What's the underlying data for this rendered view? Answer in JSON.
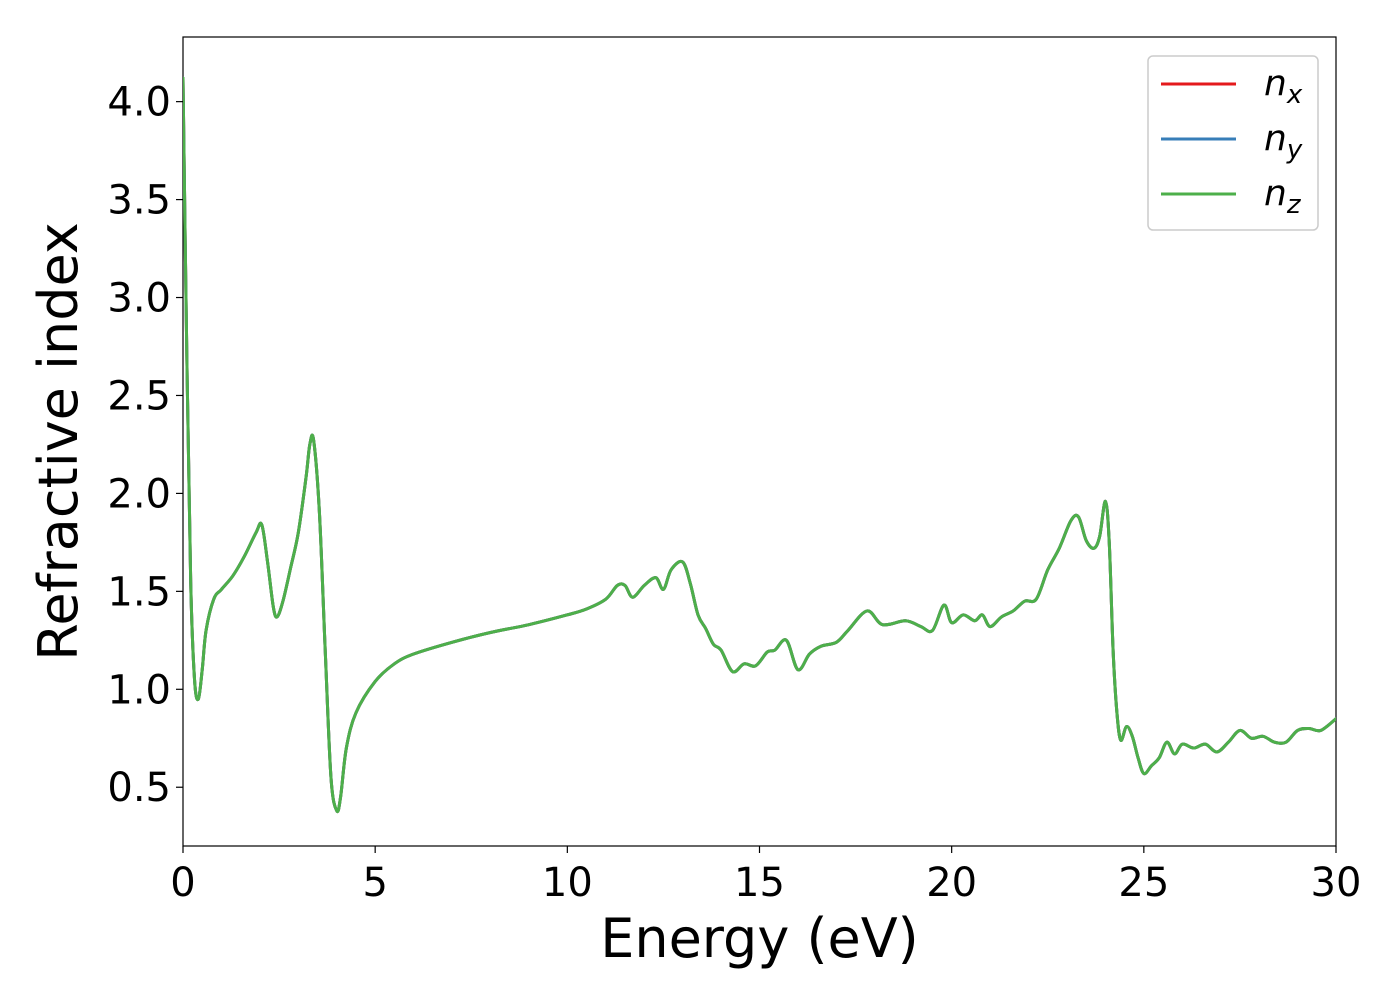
{
  "chart_data": {
    "type": "line",
    "xlabel": "Energy (eV)",
    "ylabel": "Refractive index",
    "xlim": [
      0,
      30
    ],
    "ylim": [
      0.2,
      4.33
    ],
    "xticks": [
      0,
      5,
      10,
      15,
      20,
      25,
      30
    ],
    "xtick_labels": [
      "0",
      "5",
      "10",
      "15",
      "20",
      "25",
      "30"
    ],
    "yticks": [
      0.5,
      1.0,
      1.5,
      2.0,
      2.5,
      3.0,
      3.5,
      4.0
    ],
    "ytick_labels": [
      "0.5",
      "1.0",
      "1.5",
      "2.0",
      "2.5",
      "3.0",
      "3.5",
      "4.0"
    ],
    "grid": false,
    "legend_position": "top-right",
    "series": [
      {
        "name": "n_x",
        "label_main": "n",
        "label_sub": "x",
        "color": "#e41a1c",
        "x": [
          0,
          0.1,
          0.2,
          0.3,
          0.4,
          0.5,
          0.6,
          0.8,
          1.0,
          1.3,
          1.6,
          1.9,
          2.05,
          2.2,
          2.35,
          2.45,
          2.6,
          2.8,
          3.0,
          3.2,
          3.3,
          3.4,
          3.55,
          3.7,
          3.85,
          4.0,
          4.1,
          4.25,
          4.5,
          5.0,
          5.5,
          6.0,
          7.0,
          8.0,
          9.0,
          10.0,
          10.5,
          11.0,
          11.3,
          11.5,
          11.7,
          12.0,
          12.3,
          12.5,
          12.7,
          13.0,
          13.2,
          13.4,
          13.6,
          13.8,
          14.0,
          14.3,
          14.6,
          14.9,
          15.2,
          15.4,
          15.7,
          16.0,
          16.3,
          16.6,
          17.0,
          17.3,
          17.8,
          18.2,
          18.8,
          19.2,
          19.5,
          19.8,
          20.0,
          20.3,
          20.6,
          20.8,
          21.0,
          21.3,
          21.6,
          21.9,
          22.2,
          22.5,
          22.8,
          23.1,
          23.3,
          23.5,
          23.7,
          23.85,
          24.0,
          24.1,
          24.2,
          24.3,
          24.4,
          24.55,
          24.7,
          24.85,
          25.0,
          25.2,
          25.4,
          25.6,
          25.8,
          26.0,
          26.3,
          26.6,
          26.9,
          27.2,
          27.5,
          27.8,
          28.1,
          28.4,
          28.7,
          29.0,
          29.3,
          29.6,
          30.0
        ],
        "y": [
          4.12,
          2.7,
          1.55,
          1.05,
          0.95,
          1.1,
          1.3,
          1.46,
          1.51,
          1.58,
          1.68,
          1.8,
          1.84,
          1.65,
          1.42,
          1.37,
          1.45,
          1.62,
          1.8,
          2.08,
          2.25,
          2.27,
          1.9,
          1.2,
          0.55,
          0.38,
          0.45,
          0.7,
          0.88,
          1.04,
          1.13,
          1.18,
          1.24,
          1.29,
          1.33,
          1.38,
          1.41,
          1.46,
          1.53,
          1.53,
          1.47,
          1.53,
          1.57,
          1.51,
          1.61,
          1.65,
          1.54,
          1.38,
          1.31,
          1.23,
          1.2,
          1.09,
          1.13,
          1.12,
          1.19,
          1.2,
          1.25,
          1.1,
          1.18,
          1.22,
          1.24,
          1.3,
          1.4,
          1.33,
          1.35,
          1.32,
          1.3,
          1.43,
          1.34,
          1.38,
          1.35,
          1.38,
          1.32,
          1.37,
          1.4,
          1.45,
          1.46,
          1.61,
          1.72,
          1.86,
          1.88,
          1.76,
          1.72,
          1.78,
          1.96,
          1.75,
          1.2,
          0.88,
          0.74,
          0.81,
          0.76,
          0.65,
          0.57,
          0.61,
          0.65,
          0.73,
          0.67,
          0.72,
          0.7,
          0.72,
          0.68,
          0.73,
          0.79,
          0.75,
          0.76,
          0.73,
          0.73,
          0.79,
          0.8,
          0.79,
          0.85
        ]
      },
      {
        "name": "n_y",
        "label_main": "n",
        "label_sub": "y",
        "color": "#377eb8",
        "same_as": "n_x"
      },
      {
        "name": "n_z",
        "label_main": "n",
        "label_sub": "z",
        "color": "#4daf4a",
        "same_as": "n_x"
      }
    ]
  }
}
